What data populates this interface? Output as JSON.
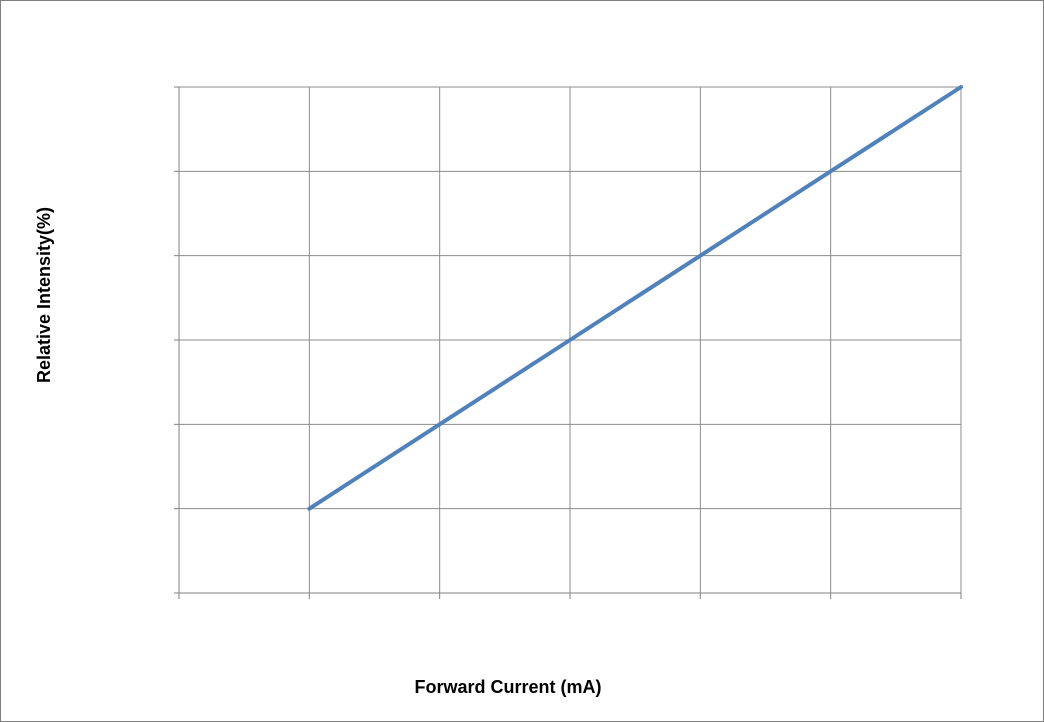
{
  "chart_data": {
    "type": "line",
    "title": "",
    "xlabel": "Forward Current (mA)",
    "ylabel": "Relative Intensity(%)",
    "x": [
      1,
      2,
      3,
      4,
      5,
      6
    ],
    "xlim": [
      0,
      6
    ],
    "ylim": [
      0,
      6
    ],
    "series": [
      {
        "values": [
          1,
          2,
          3,
          4,
          5,
          6
        ]
      }
    ],
    "grid": true,
    "legend": "none",
    "tick_labels_shown": false,
    "colors": {
      "line": "#4F81BD",
      "grid": "#8C8C8C",
      "axis": "#808080"
    }
  }
}
